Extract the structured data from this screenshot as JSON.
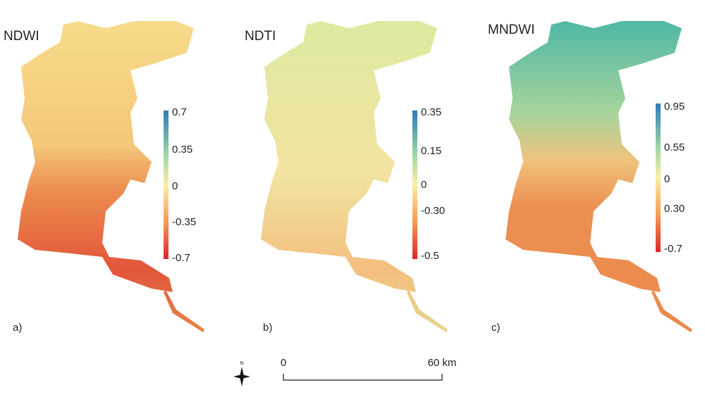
{
  "panels": [
    {
      "title": "NDWI",
      "letter": "a)",
      "colorbar": [
        "0.7",
        "0.35",
        "0",
        "-0.35",
        "-0.7"
      ]
    },
    {
      "title": "NDTI",
      "letter": "b)",
      "colorbar": [
        "0.35",
        "0.15",
        "0",
        "-0.30",
        "-0.5"
      ]
    },
    {
      "title": "MNDWI",
      "letter": "c)",
      "colorbar": [
        "0.95",
        "0.55",
        "0",
        "0.30",
        "-0.7"
      ]
    }
  ],
  "north_arrow": "N",
  "scale_bar": {
    "start": "0",
    "end": "60 km"
  }
}
